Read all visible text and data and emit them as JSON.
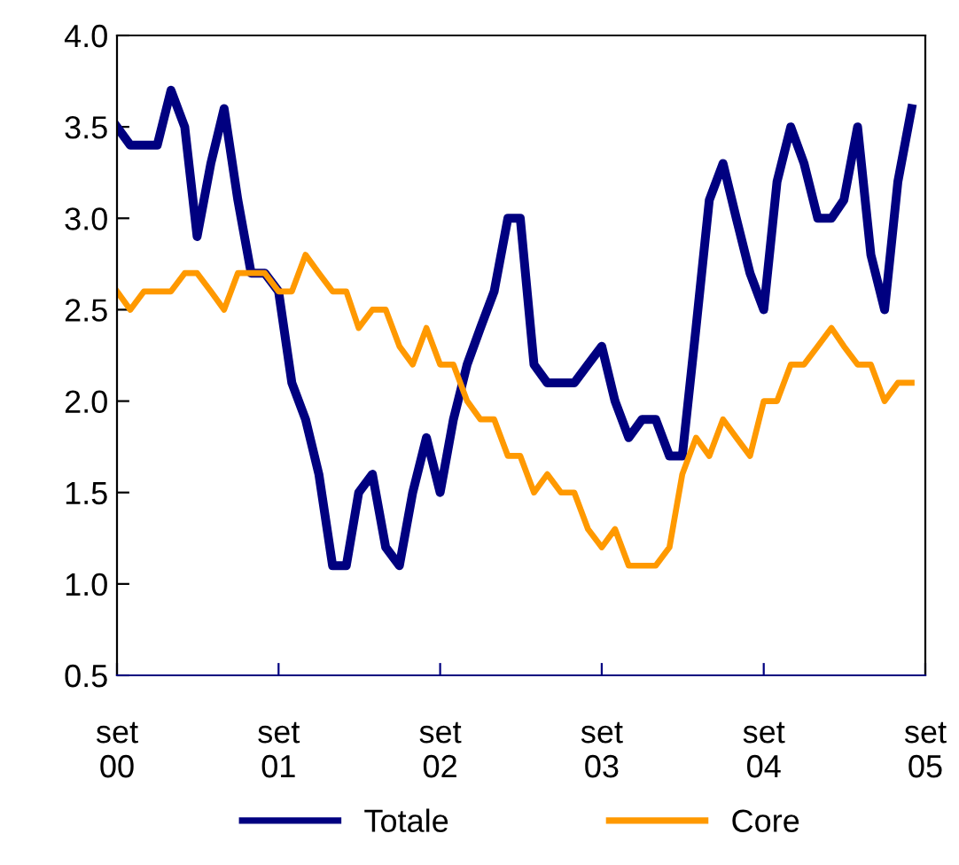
{
  "chart_data": {
    "type": "line",
    "x": [
      "2000-09",
      "2000-10",
      "2000-11",
      "2000-12",
      "2001-01",
      "2001-02",
      "2001-03",
      "2001-04",
      "2001-05",
      "2001-06",
      "2001-07",
      "2001-08",
      "2001-09",
      "2001-10",
      "2001-11",
      "2001-12",
      "2002-01",
      "2002-02",
      "2002-03",
      "2002-04",
      "2002-05",
      "2002-06",
      "2002-07",
      "2002-08",
      "2002-09",
      "2002-10",
      "2002-11",
      "2002-12",
      "2003-01",
      "2003-02",
      "2003-03",
      "2003-04",
      "2003-05",
      "2003-06",
      "2003-07",
      "2003-08",
      "2003-09",
      "2003-10",
      "2003-11",
      "2003-12",
      "2004-01",
      "2004-02",
      "2004-03",
      "2004-04",
      "2004-05",
      "2004-06",
      "2004-07",
      "2004-08",
      "2004-09",
      "2004-10",
      "2004-11",
      "2004-12",
      "2005-01",
      "2005-02",
      "2005-03",
      "2005-04",
      "2005-05",
      "2005-06",
      "2005-07",
      "2005-08"
    ],
    "series": [
      {
        "name": "Totale",
        "color": "#000080",
        "values": [
          3.5,
          3.4,
          3.4,
          3.4,
          3.7,
          3.5,
          2.9,
          3.3,
          3.6,
          3.1,
          2.7,
          2.7,
          2.6,
          2.1,
          1.9,
          1.6,
          1.1,
          1.1,
          1.5,
          1.6,
          1.2,
          1.1,
          1.5,
          1.8,
          1.5,
          1.9,
          2.2,
          2.4,
          2.6,
          3.0,
          3.0,
          2.2,
          2.1,
          2.1,
          2.1,
          2.2,
          2.3,
          2.0,
          1.8,
          1.9,
          1.9,
          1.7,
          1.7,
          2.4,
          3.1,
          3.3,
          3.0,
          2.7,
          2.5,
          3.2,
          3.5,
          3.3,
          3.0,
          3.0,
          3.1,
          3.5,
          2.8,
          2.5,
          3.2,
          3.6
        ]
      },
      {
        "name": "Core",
        "color": "#ff9900",
        "values": [
          2.6,
          2.5,
          2.6,
          2.6,
          2.6,
          2.7,
          2.7,
          2.6,
          2.5,
          2.7,
          2.7,
          2.7,
          2.6,
          2.6,
          2.8,
          2.7,
          2.6,
          2.6,
          2.4,
          2.5,
          2.5,
          2.3,
          2.2,
          2.4,
          2.2,
          2.2,
          2.0,
          1.9,
          1.9,
          1.7,
          1.7,
          1.5,
          1.6,
          1.5,
          1.5,
          1.3,
          1.2,
          1.3,
          1.1,
          1.1,
          1.1,
          1.2,
          1.6,
          1.8,
          1.7,
          1.9,
          1.8,
          1.7,
          2.0,
          2.0,
          2.2,
          2.2,
          2.3,
          2.4,
          2.3,
          2.2,
          2.2,
          2.0,
          2.1,
          2.1
        ]
      }
    ],
    "xlim": [
      "2000-09",
      "2005-09"
    ],
    "xticks": [
      {
        "value": "2000-09",
        "label": "set\n00"
      },
      {
        "value": "2001-09",
        "label": "set\n01"
      },
      {
        "value": "2002-09",
        "label": "set\n02"
      },
      {
        "value": "2003-09",
        "label": "set\n03"
      },
      {
        "value": "2004-09",
        "label": "set\n04"
      },
      {
        "value": "2005-09",
        "label": "set\n05"
      }
    ],
    "ylim": [
      0.5,
      4.0
    ],
    "yticks": [
      {
        "value": 0.5,
        "label": "0.5"
      },
      {
        "value": 1.0,
        "label": "1.0"
      },
      {
        "value": 1.5,
        "label": "1.5"
      },
      {
        "value": 2.0,
        "label": "2.0"
      },
      {
        "value": 2.5,
        "label": "2.5"
      },
      {
        "value": 3.0,
        "label": "3.0"
      },
      {
        "value": 3.5,
        "label": "3.5"
      },
      {
        "value": 4.0,
        "label": "4.0"
      }
    ],
    "grid": false,
    "legend": "bottom",
    "marker": "none",
    "line_style": "solid"
  }
}
